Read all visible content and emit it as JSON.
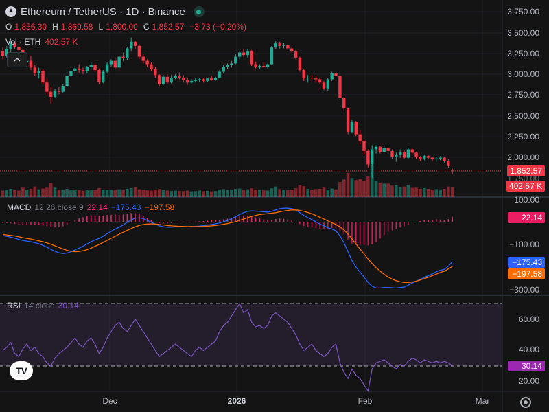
{
  "header": {
    "title": "Ethereum / TetherUS · 1D · Binance"
  },
  "ohlc": {
    "o_label": "O",
    "o": "1,856.30",
    "h_label": "H",
    "h": "1,869.58",
    "l_label": "L",
    "l": "1,800.00",
    "c_label": "C",
    "c": "1,852.57",
    "change": "−3.73 (−0.20%)"
  },
  "volume": {
    "label": "Vol · ETH",
    "value": "402.57 K"
  },
  "collapse_icon": "chevron-up-icon",
  "price_axis": {
    "labels": [
      "3,750.00",
      "3,500.00",
      "3,250.00",
      "3,000.00",
      "2,750.00",
      "2,500.00",
      "2,250.00",
      "2,000.00",
      "1,750.00"
    ],
    "last_price": "1,852.57",
    "last_volume": "402.57 K"
  },
  "macd": {
    "name": "MACD",
    "params": "12 26 close 9",
    "hist_value": "22.14",
    "macd_value": "−175.43",
    "signal_value": "−197.58",
    "axis_labels": [
      "100.00",
      "−100.00",
      "−300.00"
    ]
  },
  "rsi": {
    "name": "RSI",
    "params": "14 close",
    "value": "30.14",
    "axis_labels": [
      "60.00",
      "40.00",
      "20.00"
    ]
  },
  "time_axis": {
    "labels": [
      {
        "text": "Dec",
        "bold": false
      },
      {
        "text": "2026",
        "bold": true
      },
      {
        "text": "Feb",
        "bold": false
      },
      {
        "text": "Mar",
        "bold": false
      }
    ]
  },
  "colors": {
    "up": "#22ab94",
    "down": "#f23645",
    "macd_line": "#2962ff",
    "signal_line": "#ff6d00",
    "hist": "#f7307a",
    "rsi_line": "#7e57c2"
  },
  "chart_data": {
    "type": "candlestick",
    "title": "Ethereum / TetherUS · 1D · Binance",
    "ylim": [
      1700,
      3800
    ],
    "y_scale": "linear",
    "ohlc": [
      [
        3280,
        3320,
        3180,
        3220
      ],
      [
        3220,
        3340,
        3200,
        3300
      ],
      [
        3300,
        3420,
        3270,
        3380
      ],
      [
        3380,
        3400,
        3300,
        3330
      ],
      [
        3330,
        3380,
        3260,
        3290
      ],
      [
        3290,
        3310,
        3100,
        3140
      ],
      [
        3140,
        3200,
        3080,
        3160
      ],
      [
        3160,
        3220,
        3050,
        3080
      ],
      [
        3080,
        3110,
        2980,
        3010
      ],
      [
        3010,
        3080,
        2950,
        3040
      ],
      [
        3040,
        3060,
        2880,
        2900
      ],
      [
        2900,
        2950,
        2760,
        2790
      ],
      [
        2790,
        2850,
        2650,
        2730
      ],
      [
        2730,
        2830,
        2720,
        2800
      ],
      [
        2800,
        2850,
        2760,
        2790
      ],
      [
        2790,
        2880,
        2770,
        2860
      ],
      [
        2860,
        3000,
        2840,
        2980
      ],
      [
        2980,
        3060,
        2950,
        3040
      ],
      [
        3040,
        3100,
        3010,
        3070
      ],
      [
        3070,
        3120,
        3020,
        3050
      ],
      [
        3050,
        3080,
        3000,
        3040
      ],
      [
        3040,
        3100,
        3010,
        3090
      ],
      [
        3090,
        3140,
        3060,
        3110
      ],
      [
        3110,
        3130,
        3030,
        3050
      ],
      [
        3050,
        3070,
        2880,
        2910
      ],
      [
        2910,
        3050,
        2890,
        3030
      ],
      [
        3030,
        3140,
        3010,
        3120
      ],
      [
        3120,
        3180,
        3090,
        3160
      ],
      [
        3160,
        3200,
        3050,
        3080
      ],
      [
        3080,
        3230,
        3070,
        3210
      ],
      [
        3210,
        3260,
        3160,
        3190
      ],
      [
        3190,
        3330,
        3170,
        3310
      ],
      [
        3310,
        3440,
        3280,
        3390
      ],
      [
        3390,
        3400,
        3300,
        3340
      ],
      [
        3340,
        3360,
        3180,
        3210
      ],
      [
        3210,
        3240,
        3130,
        3160
      ],
      [
        3160,
        3180,
        3090,
        3120
      ],
      [
        3120,
        3140,
        3040,
        3060
      ],
      [
        3060,
        3090,
        2960,
        2990
      ],
      [
        2990,
        3000,
        2860,
        2880
      ],
      [
        2880,
        2990,
        2870,
        2970
      ],
      [
        2970,
        3000,
        2880,
        2900
      ],
      [
        2900,
        2990,
        2890,
        2960
      ],
      [
        2960,
        3000,
        2940,
        2980
      ],
      [
        2980,
        3020,
        2940,
        2960
      ],
      [
        2960,
        2990,
        2900,
        2930
      ],
      [
        2930,
        2960,
        2870,
        2900
      ],
      [
        2900,
        2940,
        2890,
        2920
      ],
      [
        2920,
        2950,
        2900,
        2930
      ],
      [
        2930,
        2960,
        2910,
        2940
      ],
      [
        2940,
        2950,
        2900,
        2920
      ],
      [
        2920,
        2960,
        2910,
        2950
      ],
      [
        2950,
        2980,
        2920,
        2930
      ],
      [
        2930,
        2970,
        2920,
        2960
      ],
      [
        2960,
        3050,
        2950,
        3030
      ],
      [
        3030,
        3110,
        3010,
        3090
      ],
      [
        3090,
        3130,
        3060,
        3110
      ],
      [
        3110,
        3160,
        3080,
        3130
      ],
      [
        3130,
        3240,
        3120,
        3210
      ],
      [
        3210,
        3280,
        3180,
        3260
      ],
      [
        3260,
        3300,
        3210,
        3230
      ],
      [
        3230,
        3300,
        3200,
        3280
      ],
      [
        3280,
        3290,
        3100,
        3120
      ],
      [
        3120,
        3150,
        3070,
        3090
      ],
      [
        3090,
        3120,
        3060,
        3100
      ],
      [
        3100,
        3140,
        3080,
        3090
      ],
      [
        3090,
        3130,
        3070,
        3120
      ],
      [
        3120,
        3340,
        3110,
        3320
      ],
      [
        3320,
        3400,
        3300,
        3370
      ],
      [
        3370,
        3390,
        3300,
        3340
      ],
      [
        3340,
        3370,
        3310,
        3350
      ],
      [
        3350,
        3360,
        3290,
        3310
      ],
      [
        3310,
        3330,
        3260,
        3280
      ],
      [
        3280,
        3290,
        3180,
        3200
      ],
      [
        3200,
        3210,
        3030,
        3050
      ],
      [
        3050,
        3060,
        2920,
        2950
      ],
      [
        2950,
        2990,
        2900,
        2960
      ],
      [
        2960,
        2990,
        2940,
        2950
      ],
      [
        2950,
        2980,
        2900,
        2940
      ],
      [
        2940,
        2960,
        2880,
        2900
      ],
      [
        2900,
        2920,
        2810,
        2820
      ],
      [
        2820,
        2960,
        2800,
        2940
      ],
      [
        2940,
        3030,
        2920,
        3010
      ],
      [
        3010,
        3030,
        2950,
        2980
      ],
      [
        2980,
        2990,
        2700,
        2720
      ],
      [
        2720,
        2730,
        2560,
        2590
      ],
      [
        2590,
        2600,
        2280,
        2310
      ],
      [
        2310,
        2450,
        2290,
        2430
      ],
      [
        2430,
        2440,
        2260,
        2280
      ],
      [
        2280,
        2330,
        2160,
        2200
      ],
      [
        2200,
        2210,
        2040,
        2080
      ],
      [
        2080,
        2100,
        1880,
        1920
      ],
      [
        1920,
        2150,
        1760,
        2100
      ],
      [
        2100,
        2150,
        2050,
        2130
      ],
      [
        2130,
        2140,
        2050,
        2070
      ],
      [
        2070,
        2150,
        2060,
        2120
      ],
      [
        2120,
        2130,
        2050,
        2080
      ],
      [
        2080,
        2100,
        1980,
        2010
      ],
      [
        2010,
        2060,
        1950,
        2030
      ],
      [
        2030,
        2100,
        2000,
        2070
      ],
      [
        2070,
        2090,
        1990,
        2000
      ],
      [
        2000,
        2120,
        1990,
        2100
      ],
      [
        2100,
        2110,
        2040,
        2060
      ],
      [
        2060,
        2070,
        1990,
        2010
      ],
      [
        2010,
        2020,
        1960,
        1990
      ],
      [
        1990,
        2040,
        1970,
        2020
      ],
      [
        2020,
        2030,
        1980,
        2000
      ],
      [
        2000,
        2010,
        1960,
        1980
      ],
      [
        1980,
        2010,
        1950,
        1990
      ],
      [
        1990,
        2020,
        1970,
        2000
      ],
      [
        2000,
        2010,
        1940,
        1960
      ],
      [
        1960,
        1980,
        1880,
        1900
      ],
      [
        1856.3,
        1869.58,
        1800.0,
        1852.57
      ]
    ],
    "volume_k": [
      260,
      300,
      330,
      280,
      260,
      380,
      300,
      330,
      420,
      310,
      340,
      380,
      560,
      380,
      300,
      290,
      330,
      300,
      270,
      280,
      260,
      280,
      300,
      290,
      360,
      300,
      280,
      300,
      290,
      310,
      280,
      330,
      360,
      400,
      310,
      290,
      270,
      260,
      300,
      320,
      280,
      260,
      240,
      260,
      250,
      240,
      260,
      230,
      240,
      260,
      240,
      250,
      230,
      240,
      300,
      320,
      290,
      300,
      330,
      340,
      300,
      310,
      350,
      300,
      280,
      270,
      260,
      350,
      420,
      320,
      300,
      280,
      300,
      350,
      480,
      430,
      330,
      290,
      320,
      330,
      380,
      300,
      340,
      310,
      600,
      700,
      960,
      760,
      680,
      720,
      650,
      820,
      1260,
      660,
      580,
      540,
      540,
      460,
      470,
      400,
      420,
      470,
      370,
      380,
      330,
      360,
      330,
      300,
      320,
      310,
      330,
      420,
      402.57
    ],
    "macd": {
      "macd_line": [
        -60,
        -64,
        -68,
        -72,
        -78,
        -82,
        -85,
        -88,
        -92,
        -97,
        -104,
        -112,
        -122,
        -130,
        -137,
        -140,
        -138,
        -132,
        -124,
        -116,
        -108,
        -98,
        -88,
        -80,
        -73,
        -64,
        -52,
        -42,
        -32,
        -24,
        -14,
        -2,
        8,
        16,
        18,
        14,
        6,
        -2,
        -10,
        -18,
        -22,
        -24,
        -24,
        -22,
        -22,
        -22,
        -22,
        -21,
        -20,
        -19,
        -17,
        -14,
        -12,
        -9,
        -5,
        0,
        6,
        14,
        22,
        32,
        40,
        46,
        48,
        47,
        46,
        44,
        43,
        46,
        52,
        58,
        60,
        60,
        58,
        52,
        40,
        28,
        18,
        10,
        0,
        -10,
        -18,
        -26,
        -32,
        -40,
        -62,
        -92,
        -132,
        -172,
        -200,
        -222,
        -244,
        -268,
        -284,
        -292,
        -292,
        -290,
        -290,
        -291,
        -292,
        -290,
        -288,
        -280,
        -270,
        -262,
        -254,
        -245,
        -238,
        -230,
        -220,
        -214,
        -210,
        -196,
        -175.43
      ],
      "signal_line": [
        -55,
        -58,
        -60,
        -62,
        -66,
        -70,
        -73,
        -76,
        -80,
        -84,
        -88,
        -93,
        -99,
        -106,
        -113,
        -120,
        -126,
        -130,
        -132,
        -131,
        -128,
        -123,
        -116,
        -108,
        -100,
        -91,
        -82,
        -73,
        -64,
        -55,
        -46,
        -38,
        -30,
        -22,
        -16,
        -12,
        -10,
        -9,
        -10,
        -12,
        -14,
        -16,
        -18,
        -19,
        -20,
        -20,
        -21,
        -21,
        -21,
        -21,
        -20,
        -19,
        -18,
        -16,
        -14,
        -11,
        -8,
        -4,
        0,
        6,
        12,
        18,
        24,
        28,
        32,
        34,
        36,
        38,
        40,
        44,
        47,
        50,
        52,
        52,
        50,
        46,
        41,
        35,
        28,
        20,
        12,
        4,
        -4,
        -12,
        -22,
        -36,
        -54,
        -76,
        -98,
        -120,
        -142,
        -164,
        -184,
        -202,
        -218,
        -232,
        -244,
        -253,
        -260,
        -265,
        -268,
        -268,
        -266,
        -262,
        -257,
        -251,
        -245,
        -238,
        -231,
        -224,
        -218,
        -208,
        -197.58
      ],
      "hist_value": 22.14
    },
    "rsi": {
      "upper_band": 70,
      "lower_band": 30,
      "values": [
        40,
        42,
        45,
        38,
        36,
        41,
        44,
        40,
        42,
        38,
        36,
        32,
        30,
        35,
        38,
        40,
        42,
        45,
        48,
        44,
        42,
        46,
        48,
        44,
        38,
        42,
        48,
        52,
        56,
        58,
        54,
        52,
        56,
        60,
        56,
        52,
        48,
        44,
        40,
        36,
        38,
        40,
        42,
        44,
        42,
        40,
        38,
        36,
        40,
        42,
        40,
        42,
        44,
        46,
        52,
        56,
        58,
        62,
        66,
        70,
        64,
        66,
        58,
        55,
        56,
        54,
        56,
        62,
        64,
        62,
        60,
        58,
        54,
        50,
        44,
        40,
        42,
        44,
        40,
        38,
        36,
        38,
        42,
        44,
        32,
        26,
        22,
        28,
        24,
        22,
        18,
        14,
        28,
        32,
        33,
        34,
        32,
        30,
        28,
        31,
        30,
        33,
        35,
        34,
        32,
        34,
        33,
        32,
        33,
        32,
        33,
        32,
        30.14
      ]
    }
  }
}
